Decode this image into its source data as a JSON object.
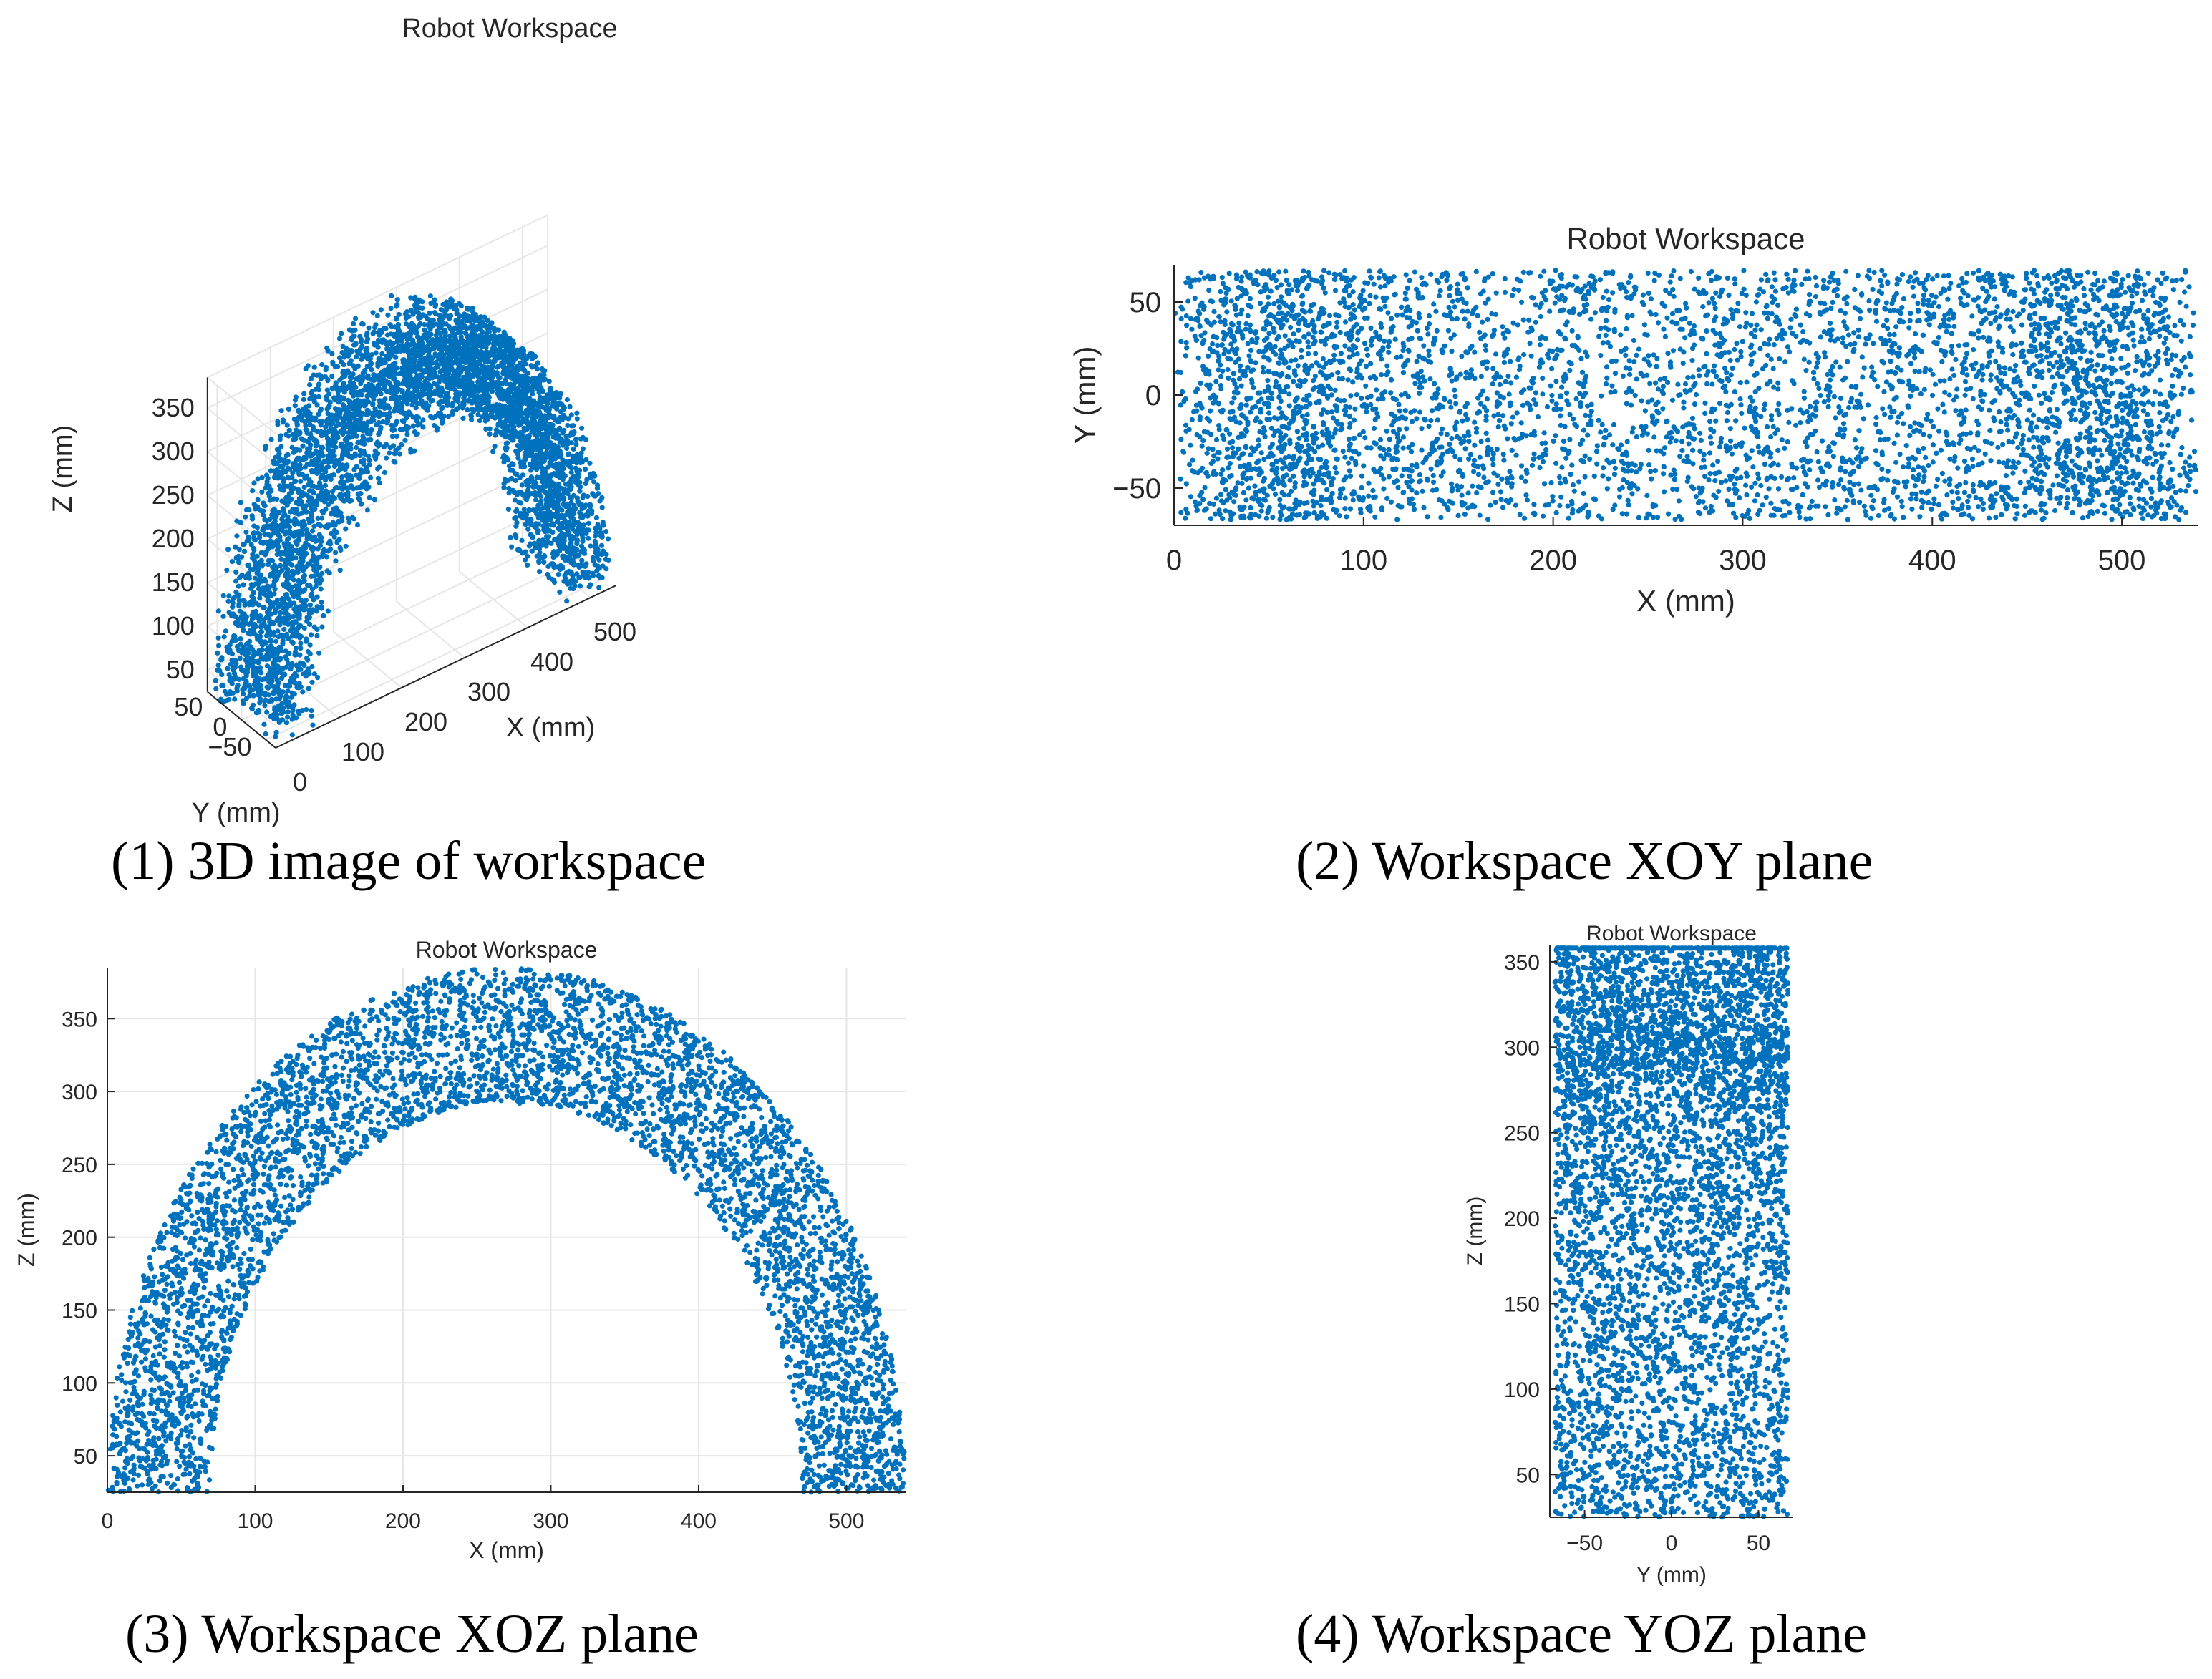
{
  "figure": {
    "captions": [
      "(1) 3D image of workspace",
      "(2) Workspace XOY plane",
      "(3) Workspace XOZ plane",
      "(4) Workspace YOZ plane"
    ],
    "point_color": "#0072BD",
    "grid_color": "#e6e6e6",
    "axis_color": "#262626"
  },
  "chart_data": [
    {
      "type": "scatter",
      "view": "3d",
      "title": "Robot Workspace",
      "xlabel": "X (mm)",
      "ylabel": "Y (mm)",
      "zlabel": "Z (mm)",
      "xlim": [
        0,
        540
      ],
      "ylim": [
        -70,
        70
      ],
      "zlim": [
        25,
        385
      ],
      "xticks": [
        "0",
        "100",
        "200",
        "300",
        "400",
        "500"
      ],
      "yticks": [
        "−50",
        "0",
        "50"
      ],
      "zticks": [
        "50",
        "100",
        "150",
        "200",
        "250",
        "300",
        "350"
      ],
      "grid": true,
      "series": [
        {
          "distribution": "half-ring",
          "x_range": [
            0,
            540
          ],
          "y_range": [
            -67,
            67
          ],
          "z_range": [
            25,
            385
          ],
          "count": 5000
        }
      ]
    },
    {
      "type": "scatter",
      "view": "xy",
      "title": "Robot Workspace",
      "xlabel": "X (mm)",
      "ylabel": "Y (mm)",
      "xlim": [
        0,
        540
      ],
      "ylim": [
        -70,
        70
      ],
      "xticks": [
        "0",
        "100",
        "200",
        "300",
        "400",
        "500"
      ],
      "yticks": [
        "−50",
        "0",
        "50"
      ],
      "grid": false,
      "series": [
        {
          "distribution": "half-ring",
          "x_range": [
            0,
            540
          ],
          "y_range": [
            -67,
            67
          ],
          "count": 5000
        }
      ]
    },
    {
      "type": "scatter",
      "view": "xz",
      "title": "Robot Workspace",
      "xlabel": "X (mm)",
      "ylabel": "Z (mm)",
      "xlim": [
        0,
        540
      ],
      "ylim": [
        25,
        385
      ],
      "xticks": [
        "0",
        "100",
        "200",
        "300",
        "400",
        "500"
      ],
      "yticks": [
        "50",
        "100",
        "150",
        "200",
        "250",
        "300",
        "350"
      ],
      "grid": true,
      "series": [
        {
          "distribution": "half-ring",
          "x_range": [
            0,
            540
          ],
          "z_range": [
            25,
            385
          ],
          "count": 5000
        }
      ]
    },
    {
      "type": "scatter",
      "view": "yz",
      "title": "Robot Workspace",
      "xlabel": "Y (mm)",
      "ylabel": "Z (mm)",
      "xlim": [
        -70,
        70
      ],
      "ylim": [
        25,
        360
      ],
      "xticks": [
        "−50",
        "0",
        "50"
      ],
      "yticks": [
        "50",
        "100",
        "150",
        "200",
        "250",
        "300",
        "350"
      ],
      "grid": false,
      "series": [
        {
          "distribution": "half-ring",
          "y_range": [
            -67,
            67
          ],
          "z_range": [
            25,
            385
          ],
          "count": 5000
        }
      ]
    }
  ]
}
